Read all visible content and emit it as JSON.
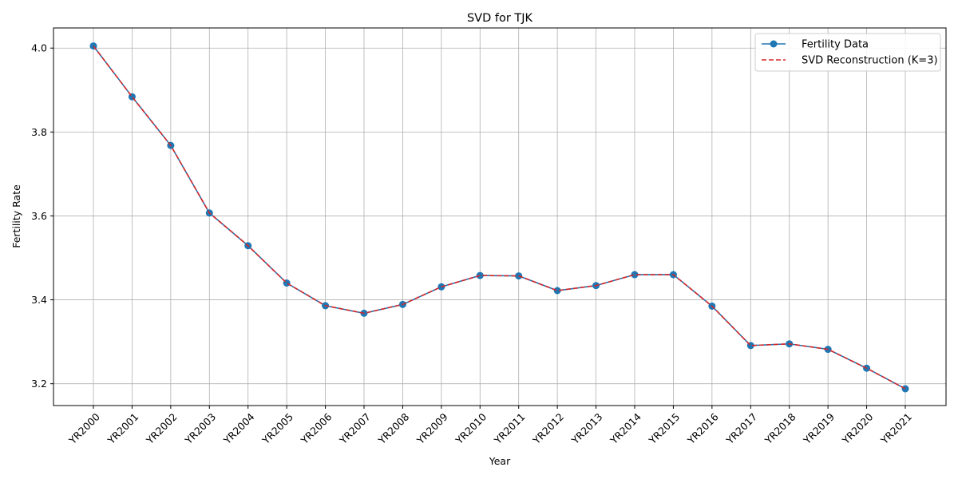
{
  "chart_data": {
    "type": "line",
    "title": "SVD for TJK",
    "xlabel": "Year",
    "ylabel": "Fertility Rate",
    "categories": [
      "YR2000",
      "YR2001",
      "YR2002",
      "YR2003",
      "YR2004",
      "YR2005",
      "YR2006",
      "YR2007",
      "YR2008",
      "YR2009",
      "YR2010",
      "YR2011",
      "YR2012",
      "YR2013",
      "YR2014",
      "YR2015",
      "YR2016",
      "YR2017",
      "YR2018",
      "YR2019",
      "YR2020",
      "YR2021"
    ],
    "ylim": [
      3.148,
      4.048
    ],
    "yticks": [
      3.2,
      3.4,
      3.6,
      3.8,
      4.0
    ],
    "ytick_labels": [
      "3.2",
      "3.4",
      "3.6",
      "3.8",
      "4.0"
    ],
    "grid": true,
    "legend_position": "top-right",
    "series": [
      {
        "name": "Fertility Data",
        "color": "#1f77b4",
        "style": "solid-with-circle-markers",
        "values": [
          4.005,
          3.884,
          3.768,
          3.607,
          3.529,
          3.44,
          3.386,
          3.368,
          3.389,
          3.431,
          3.458,
          3.457,
          3.422,
          3.434,
          3.46,
          3.46,
          3.385,
          3.291,
          3.295,
          3.282,
          3.237,
          3.188
        ]
      },
      {
        "name": "SVD Reconstruction (K=3)",
        "color": "#d62728",
        "style": "dashed",
        "values": [
          4.005,
          3.884,
          3.768,
          3.607,
          3.529,
          3.44,
          3.386,
          3.368,
          3.389,
          3.431,
          3.458,
          3.457,
          3.422,
          3.434,
          3.46,
          3.46,
          3.385,
          3.291,
          3.295,
          3.282,
          3.237,
          3.188
        ]
      }
    ]
  }
}
